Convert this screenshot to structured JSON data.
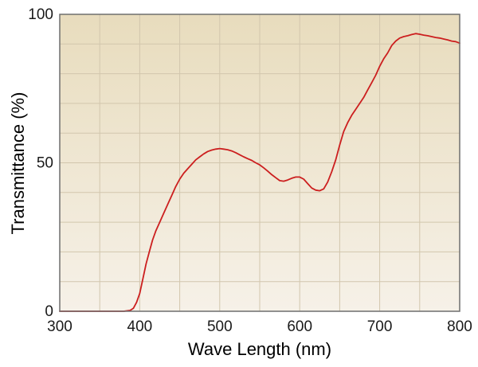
{
  "chart_data": {
    "type": "line",
    "title": "",
    "xlabel": "Wave Length (nm)",
    "ylabel": "Transmittance (%)",
    "xlim": [
      300,
      800
    ],
    "ylim": [
      0,
      100
    ],
    "x_ticks": [
      "300",
      "400",
      "500",
      "600",
      "700",
      "800"
    ],
    "y_ticks": [
      "0",
      "50",
      "100"
    ],
    "grid": true,
    "legend": "none",
    "colors": {
      "line": "#cc1f1f",
      "background_top": "#e8dcbd",
      "background_bottom": "#f6f1e8",
      "grid": "#d2c6ad",
      "frame": "#6e6e6e"
    },
    "series": [
      {
        "x": [
          300,
          340,
          380,
          388,
          392,
          396,
          400,
          404,
          408,
          412,
          416,
          420,
          425,
          430,
          435,
          440,
          445,
          450,
          455,
          460,
          465,
          470,
          475,
          480,
          485,
          490,
          495,
          500,
          505,
          510,
          515,
          520,
          525,
          530,
          535,
          540,
          545,
          550,
          555,
          560,
          565,
          570,
          575,
          580,
          585,
          590,
          595,
          600,
          605,
          610,
          615,
          620,
          625,
          630,
          635,
          640,
          645,
          650,
          655,
          660,
          665,
          670,
          675,
          680,
          685,
          690,
          695,
          700,
          705,
          710,
          715,
          720,
          725,
          730,
          735,
          740,
          745,
          750,
          755,
          760,
          765,
          770,
          775,
          780,
          785,
          790,
          795,
          800
        ],
        "values": [
          0,
          0,
          0,
          0.3,
          1,
          3,
          6,
          11,
          16,
          20,
          24,
          27,
          30,
          33,
          36,
          39,
          42,
          44.5,
          46.5,
          48,
          49.5,
          51,
          52,
          53,
          53.8,
          54.3,
          54.6,
          54.8,
          54.6,
          54.4,
          54,
          53.4,
          52.7,
          52,
          51.4,
          50.8,
          50,
          49.3,
          48.3,
          47.2,
          46,
          45,
          44,
          43.8,
          44.2,
          44.8,
          45.2,
          45.2,
          44.5,
          43,
          41.5,
          40.8,
          40.6,
          41.2,
          43.5,
          47,
          51,
          56,
          60.5,
          63.5,
          66,
          68,
          70,
          72,
          74.5,
          77,
          79.5,
          82.5,
          85,
          87,
          89.5,
          91,
          92,
          92.5,
          92.8,
          93.2,
          93.5,
          93.3,
          93,
          92.8,
          92.5,
          92.2,
          92,
          91.7,
          91.4,
          91,
          90.8,
          90.3
        ]
      }
    ]
  }
}
